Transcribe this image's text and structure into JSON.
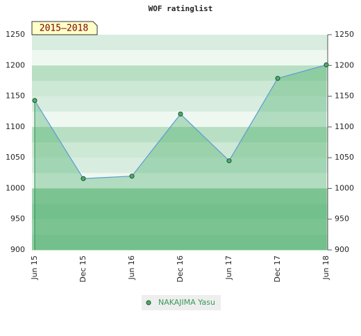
{
  "chart_data": {
    "type": "line",
    "title": "WOF ratinglist",
    "badge": "2015–2018",
    "categories": [
      "Jun 15",
      "Dec 15",
      "Jun 16",
      "Dec 16",
      "Jun 17",
      "Dec 17",
      "Jun 18"
    ],
    "series": [
      {
        "name": "NAKAJIMA Yasu",
        "color": "#5b9bd5",
        "values": [
          1143,
          1016,
          1020,
          1121,
          1045,
          1179,
          1201
        ]
      }
    ],
    "ylim": [
      900,
      1250
    ],
    "yticks": [
      900,
      950,
      1000,
      1050,
      1100,
      1150,
      1200,
      1250
    ],
    "legend": "bottom"
  }
}
